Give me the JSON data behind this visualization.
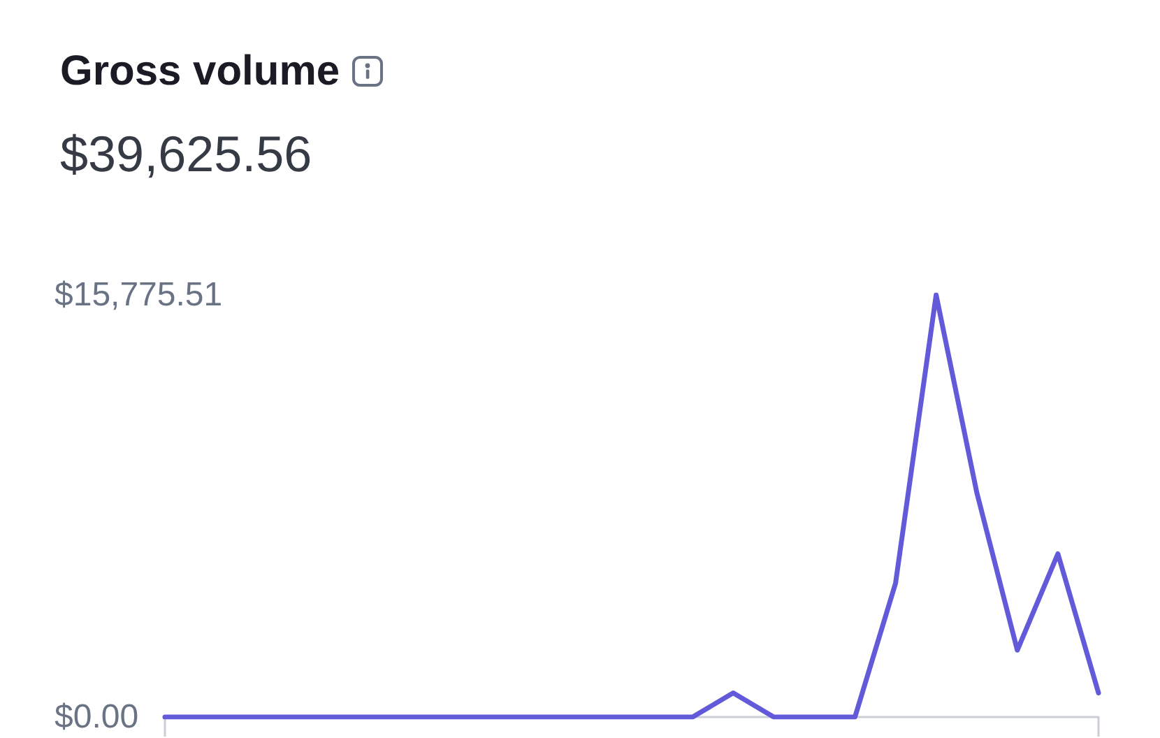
{
  "chart_data": {
    "type": "line",
    "title": "Gross volume",
    "subtitle": "$39,625.56",
    "categories": [
      null,
      null,
      null,
      null,
      null,
      null,
      null,
      null,
      null,
      null,
      null,
      null,
      null,
      null,
      null,
      null,
      null,
      null,
      null,
      null,
      null,
      null,
      null,
      null
    ],
    "values": [
      0,
      0,
      0,
      0,
      0,
      0,
      0,
      0,
      0,
      0,
      0,
      0,
      0,
      0,
      900,
      0,
      0,
      0,
      5000,
      15775.51,
      8400,
      2500,
      6100,
      900
    ],
    "color": "#625ad8",
    "ylim": [
      0,
      15775.51
    ],
    "yticks": [
      {
        "value": 0,
        "label": "$0.00"
      },
      {
        "value": 15775.51,
        "label": "$15,775.51"
      }
    ],
    "marker": "none"
  }
}
